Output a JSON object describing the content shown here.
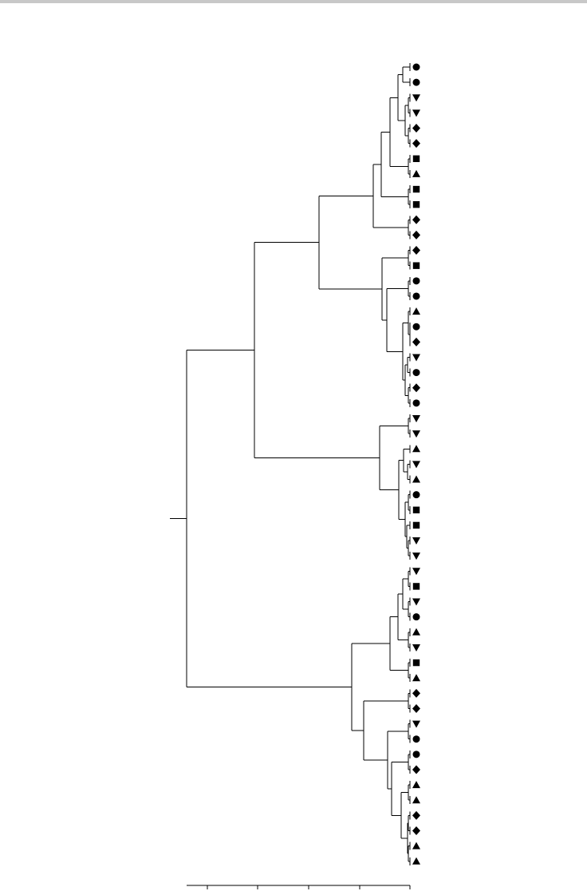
{
  "figure": {
    "type": "dendrogram",
    "orientation": "root-left",
    "marker_color": "#000000",
    "line_color": "#000000",
    "top_rule_color": "#c8c8c8",
    "leaf_markers": [
      "circle",
      "circle",
      "triangle-down",
      "triangle-down",
      "diamond",
      "diamond",
      "square",
      "triangle-up",
      "square",
      "square",
      "diamond",
      "diamond",
      "diamond",
      "square",
      "circle",
      "circle",
      "triangle-up",
      "circle",
      "diamond",
      "triangle-down",
      "circle",
      "diamond",
      "circle",
      "triangle-down",
      "triangle-down",
      "triangle-up",
      "triangle-down",
      "triangle-up",
      "circle",
      "square",
      "square",
      "triangle-down",
      "triangle-down",
      "triangle-down",
      "square",
      "triangle-down",
      "circle",
      "triangle-up",
      "triangle-down",
      "square",
      "triangle-up",
      "diamond",
      "diamond",
      "triangle-down",
      "circle",
      "circle",
      "diamond",
      "triangle-up",
      "triangle-up",
      "diamond",
      "diamond",
      "triangle-up",
      "triangle-up"
    ],
    "scale_axis": {
      "tick_count": 5,
      "tick_labels_shown": false
    }
  }
}
